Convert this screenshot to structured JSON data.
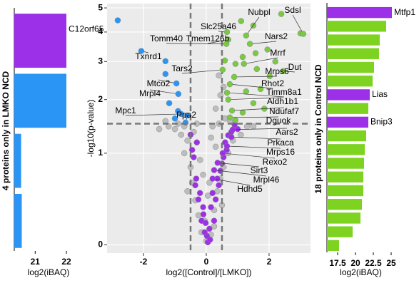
{
  "chart_data": [
    {
      "type": "barh",
      "ylabel": "4 proteins only in LMKO NCD",
      "xlabel": "log2(iBAQ)",
      "categories": [
        "C12orf65",
        null,
        null,
        null
      ],
      "values": [
        22.0,
        22.0,
        20.55,
        20.57
      ],
      "colors": [
        "#9b30e8",
        "#2b95f5",
        "#2b95f5",
        "#2b95f5"
      ],
      "xlim": [
        20.33,
        22.16
      ],
      "xticks": [
        21,
        22
      ]
    },
    {
      "type": "scatter",
      "ylabel": "-log10(p-value)",
      "xlabel": "log2([Control]/[LMKO])",
      "xlim": [
        -3.16,
        3.32
      ],
      "ylim": [
        -0.06,
        5.2
      ],
      "yscale": "log1p",
      "grid": true,
      "xticks": [
        -2,
        0,
        2
      ],
      "yticks": [
        0,
        1,
        2,
        3,
        4,
        5
      ],
      "vlines": [
        -0.5,
        0.5
      ],
      "hlines": [
        1.5
      ],
      "series": [
        {
          "color": "#bdbdbd",
          "x": [
            -1.0,
            -1.2,
            -0.8,
            -0.6,
            -0.7,
            -0.5,
            -0.45,
            -0.35,
            -0.25,
            -0.15,
            0,
            0.15,
            0.25,
            0.35,
            0.45,
            0.55,
            0.7,
            0.85,
            1.1,
            1.3,
            0.4,
            -0.3,
            0.2,
            -0.9,
            -1.3,
            0.6,
            0.3,
            0.45,
            0.55,
            0.4,
            -0.2,
            0.1,
            -0.1,
            0.3,
            -0.6,
            0.5,
            -1.5,
            1.5,
            -0.4,
            0.15,
            0.05,
            -0.05,
            0.25,
            -0.7,
            0.75
          ],
          "y": [
            1.4,
            1.45,
            1.3,
            1.2,
            1.0,
            0.8,
            0.6,
            0.4,
            0.25,
            0.1,
            0.03,
            0.08,
            0.3,
            0.5,
            0.65,
            0.8,
            1.0,
            1.2,
            1.3,
            1.45,
            1.5,
            1.5,
            1.45,
            1.5,
            1.55,
            1.6,
            1.8,
            2.1,
            2.3,
            2.6,
            0.9,
            0.6,
            0.7,
            1.1,
            0.5,
            0.35,
            1.4,
            1.45,
            1.35,
            1.25,
            0.45,
            0.2,
            0.15,
            1.45,
            1.55
          ]
        },
        {
          "color": "#9b30e8",
          "x": [
            -0.32,
            -0.2,
            -0.09,
            0.02,
            0.1,
            -0.15,
            0.15,
            0.3,
            0.4,
            -0.35,
            0.45,
            -0.4,
            0.55,
            0.6,
            -0.3,
            0.7,
            0.05,
            -0.05,
            0.2,
            0.35,
            -0.25,
            0.25,
            -0.1,
            0.5,
            0.65,
            -0.45,
            0.8,
            -0.5,
            1.0,
            0.9,
            0.12,
            -0.02
          ],
          "y": [
            0.65,
            0.48,
            0.26,
            0.07,
            0.13,
            0.2,
            0.33,
            0.41,
            0.57,
            0.57,
            0.75,
            0.94,
            0.94,
            1.17,
            1.17,
            1.29,
            0.02,
            0.1,
            0.48,
            0.65,
            0.41,
            0.2,
            0.33,
            0.85,
            1.05,
            1.05,
            1.35,
            1.3,
            1.4,
            1.48,
            0.04,
            0.18
          ]
        },
        {
          "color": "#7ac943",
          "x": [
            2.39,
            3.0,
            1.11,
            1.5,
            1.95,
            1.57,
            1.16,
            1.61,
            2.02,
            1.27,
            1.73,
            1.16,
            0.93,
            1.5,
            0.59,
            0.93,
            2.2,
            1.85
          ],
          "y": [
            4.73,
            3.95,
            4.43,
            4.25,
            3.38,
            3.26,
            3.14,
            2.78,
            2.58,
            2.19,
            2.25,
            1.72,
            1.57,
            1.92,
            3.03,
            2.93,
            3.0,
            1.8
          ]
        },
        {
          "color": "#2b95f5",
          "x": [
            -2.82,
            -1.3,
            -1.3,
            -1.18,
            -0.66,
            -1.0,
            -0.9
          ],
          "y": [
            4.46,
            3.01,
            2.64,
            1.92,
            1.52,
            1.6,
            1.75
          ]
        }
      ],
      "annotations": [
        {
          "text": "Nubpl",
          "x": 1.27,
          "y": 3.87,
          "color": "#7ac943"
        },
        {
          "text": "Sdsl",
          "x": 3.09,
          "y": 3.93,
          "color": "#7ac943"
        },
        {
          "text": "Slc25a46",
          "x": 0.66,
          "y": 4.0,
          "color": "#7ac943"
        },
        {
          "text": "Tomm40",
          "x": 0.64,
          "y": 3.57,
          "color": "#7ac943"
        },
        {
          "text": "Tmem126b",
          "x": 0.7,
          "y": 3.72,
          "color": "#7ac943"
        },
        {
          "text": "Nars2",
          "x": 1.39,
          "y": 3.57,
          "color": "#7ac943"
        },
        {
          "text": "Txnrd1",
          "x": -2.07,
          "y": 3.33,
          "color": "#2b95f5"
        },
        {
          "text": "Mrrf",
          "x": 1.2,
          "y": 2.93,
          "color": "#7ac943"
        },
        {
          "text": "Dut",
          "x": 2.45,
          "y": 2.72,
          "color": "#7ac943"
        },
        {
          "text": "Tars2",
          "x": 0.52,
          "y": 2.76,
          "color": "#7ac943"
        },
        {
          "text": "Mrps6",
          "x": 0.89,
          "y": 2.56,
          "color": "#7ac943"
        },
        {
          "text": "Rhot2",
          "x": 0.75,
          "y": 2.37,
          "color": "#7ac943"
        },
        {
          "text": "Mtco2",
          "x": -0.95,
          "y": 2.39,
          "color": "#2b95f5"
        },
        {
          "text": "Mrpl4",
          "x": -0.89,
          "y": 2.13,
          "color": "#2b95f5"
        },
        {
          "text": "Timm8a1",
          "x": 0.66,
          "y": 2.16,
          "color": "#7ac943"
        },
        {
          "text": "Aldh1b1",
          "x": 0.7,
          "y": 2.0,
          "color": "#7ac943"
        },
        {
          "text": "Mpc1",
          "x": -0.8,
          "y": 1.69,
          "color": "#2b95f5"
        },
        {
          "text": "Ppa2",
          "x": -0.61,
          "y": 1.66,
          "color": "#2b95f5"
        },
        {
          "text": "Ndufaf7",
          "x": 0.82,
          "y": 1.76,
          "color": "#7ac943"
        },
        {
          "text": "Dguok",
          "x": 0.75,
          "y": 1.62,
          "color": "#7ac943"
        },
        {
          "text": "Aars2",
          "x": 0.84,
          "y": 1.39,
          "color": "#9b30e8"
        },
        {
          "text": "Prkaca",
          "x": 0.8,
          "y": 1.26,
          "color": "#9b30e8"
        },
        {
          "text": "Mrps16",
          "x": 0.66,
          "y": 1.11,
          "color": "#9b30e8"
        },
        {
          "text": "Rexo2",
          "x": 0.52,
          "y": 1.0,
          "color": "#9b30e8"
        },
        {
          "text": "Sirt3",
          "x": 0.36,
          "y": 0.86,
          "color": "#9b30e8"
        },
        {
          "text": "Mrpl46",
          "x": 0.25,
          "y": 0.76,
          "color": "#9b30e8"
        },
        {
          "text": "Hdhd5",
          "x": 0.2,
          "y": 0.65,
          "color": "#9b30e8"
        }
      ]
    },
    {
      "type": "barh",
      "ylabel": "18 proteins only in Control NCD",
      "xlabel": "log2(iBAQ)",
      "categories": [
        "Mtfp1",
        null,
        null,
        null,
        null,
        null,
        "Lias",
        null,
        "Bnip3",
        null,
        null,
        null,
        null,
        null,
        null,
        null,
        null,
        null
      ],
      "values": [
        25.1,
        24.3,
        23.4,
        23.3,
        22.6,
        22.4,
        22.0,
        21.8,
        21.8,
        21.5,
        21.3,
        21.2,
        21.1,
        21.1,
        20.9,
        20.7,
        19.6,
        17.7
      ],
      "colors": [
        "#9b30e8",
        "#7ed321",
        "#7ed321",
        "#7ed321",
        "#7ed321",
        "#7ed321",
        "#9b30e8",
        "#7ed321",
        "#9b30e8",
        "#7ed321",
        "#7ed321",
        "#7ed321",
        "#7ed321",
        "#7ed321",
        "#7ed321",
        "#7ed321",
        "#7ed321",
        "#7ed321"
      ],
      "xlim": [
        16,
        25.5
      ],
      "xticks": [
        17.5,
        20,
        22.5,
        25
      ]
    }
  ]
}
